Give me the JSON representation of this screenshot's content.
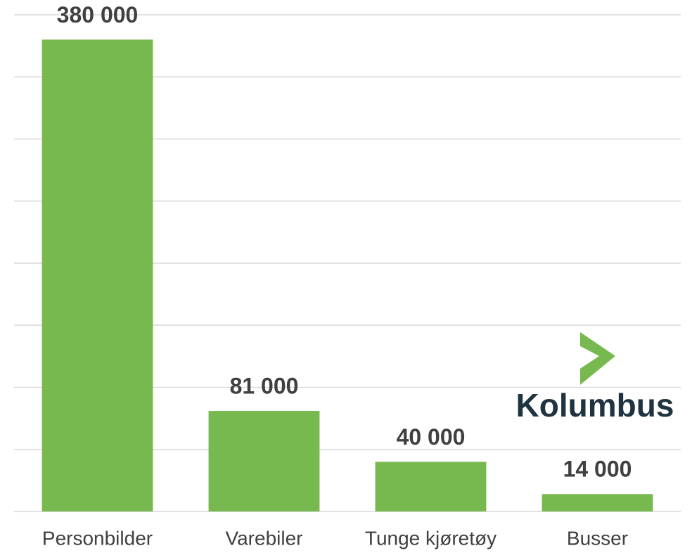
{
  "chart_data": {
    "type": "bar",
    "categories": [
      "Personbilder",
      "Varebiler",
      "Tunge kjøretøy",
      "Busser"
    ],
    "values": [
      380000,
      81000,
      40000,
      14000
    ],
    "value_labels": [
      "380 000",
      "81 000",
      "40 000",
      "14 000"
    ],
    "color": "#77b94f",
    "ylim": [
      0,
      400000
    ],
    "yticks": [
      0,
      50000,
      100000,
      150000,
      200000,
      250000,
      300000,
      350000,
      400000
    ],
    "grid": true
  },
  "logo": "Kolumbus"
}
